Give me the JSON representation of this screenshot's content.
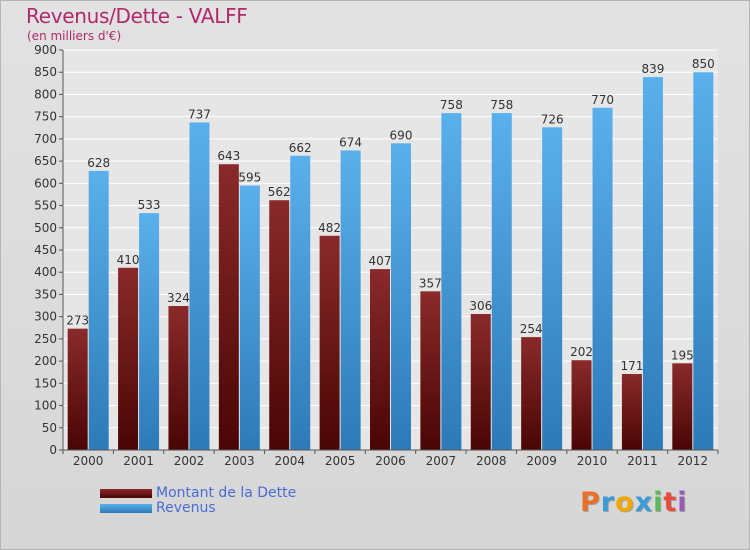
{
  "chart_data": {
    "type": "bar",
    "title": "Revenus/Dette - VALFF",
    "subtitle": "(en milliers d'€)",
    "categories": [
      "2000",
      "2001",
      "2002",
      "2003",
      "2004",
      "2005",
      "2006",
      "2007",
      "2008",
      "2009",
      "2010",
      "2011",
      "2012"
    ],
    "series": [
      {
        "name": "Montant de la Dette",
        "color": "#7a1a1a",
        "values": [
          273,
          410,
          324,
          643,
          562,
          482,
          407,
          357,
          306,
          254,
          202,
          171,
          195
        ]
      },
      {
        "name": "Revenus",
        "color": "#4aa3e0",
        "values": [
          628,
          533,
          737,
          595,
          662,
          674,
          690,
          758,
          758,
          726,
          770,
          839,
          850
        ]
      }
    ],
    "ylim": [
      0,
      900
    ],
    "yticks": [
      0,
      50,
      100,
      150,
      200,
      250,
      300,
      350,
      400,
      450,
      500,
      550,
      600,
      650,
      700,
      750,
      800,
      850,
      900
    ],
    "grid": true,
    "legend": "bottom-left"
  },
  "brand": {
    "logo_text": "Proxiti",
    "logo_colors": [
      "#e8702a",
      "#3a9bd6",
      "#f0a800",
      "#3a9bd6",
      "#5cb85c",
      "#e84c3d",
      "#9b59b6"
    ]
  }
}
